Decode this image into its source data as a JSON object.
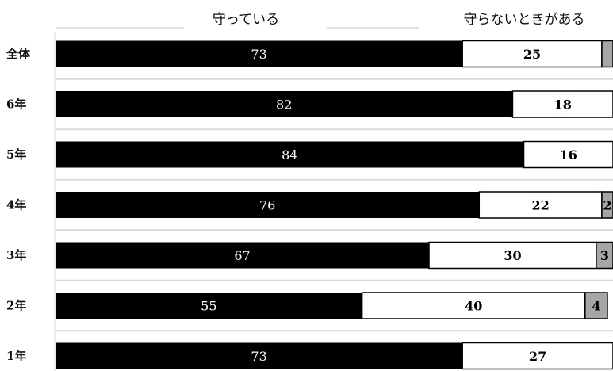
{
  "chart_data": {
    "type": "bar",
    "orientation": "horizontal",
    "stacked": true,
    "title": "",
    "xlabel": "",
    "ylabel": "",
    "xlim": [
      0,
      100
    ],
    "grid": false,
    "legend_placement": "top",
    "categories": [
      "全体",
      "6年",
      "5年",
      "4年",
      "3年",
      "2年",
      "1年"
    ],
    "series": [
      {
        "name": "守っている",
        "values": [
          73,
          82,
          84,
          76,
          67,
          55,
          73
        ],
        "color": "#000000",
        "label_color": "#ffffff"
      },
      {
        "name": "守らないときがある",
        "values": [
          25,
          18,
          16,
          22,
          30,
          40,
          27
        ],
        "color": "#ffffff",
        "label_color": "#000000"
      },
      {
        "name": "",
        "values": [
          2,
          null,
          null,
          2,
          3,
          4,
          null
        ],
        "color": "#a6a6a6",
        "label_color": "#000000"
      }
    ],
    "value_labels": [
      [
        "73",
        "82",
        "84",
        "76",
        "67",
        "55",
        "73"
      ],
      [
        "25",
        "18",
        "16",
        "22",
        "30",
        "40",
        "27"
      ],
      [
        "",
        "",
        "",
        "2",
        "3",
        "4",
        ""
      ]
    ]
  }
}
